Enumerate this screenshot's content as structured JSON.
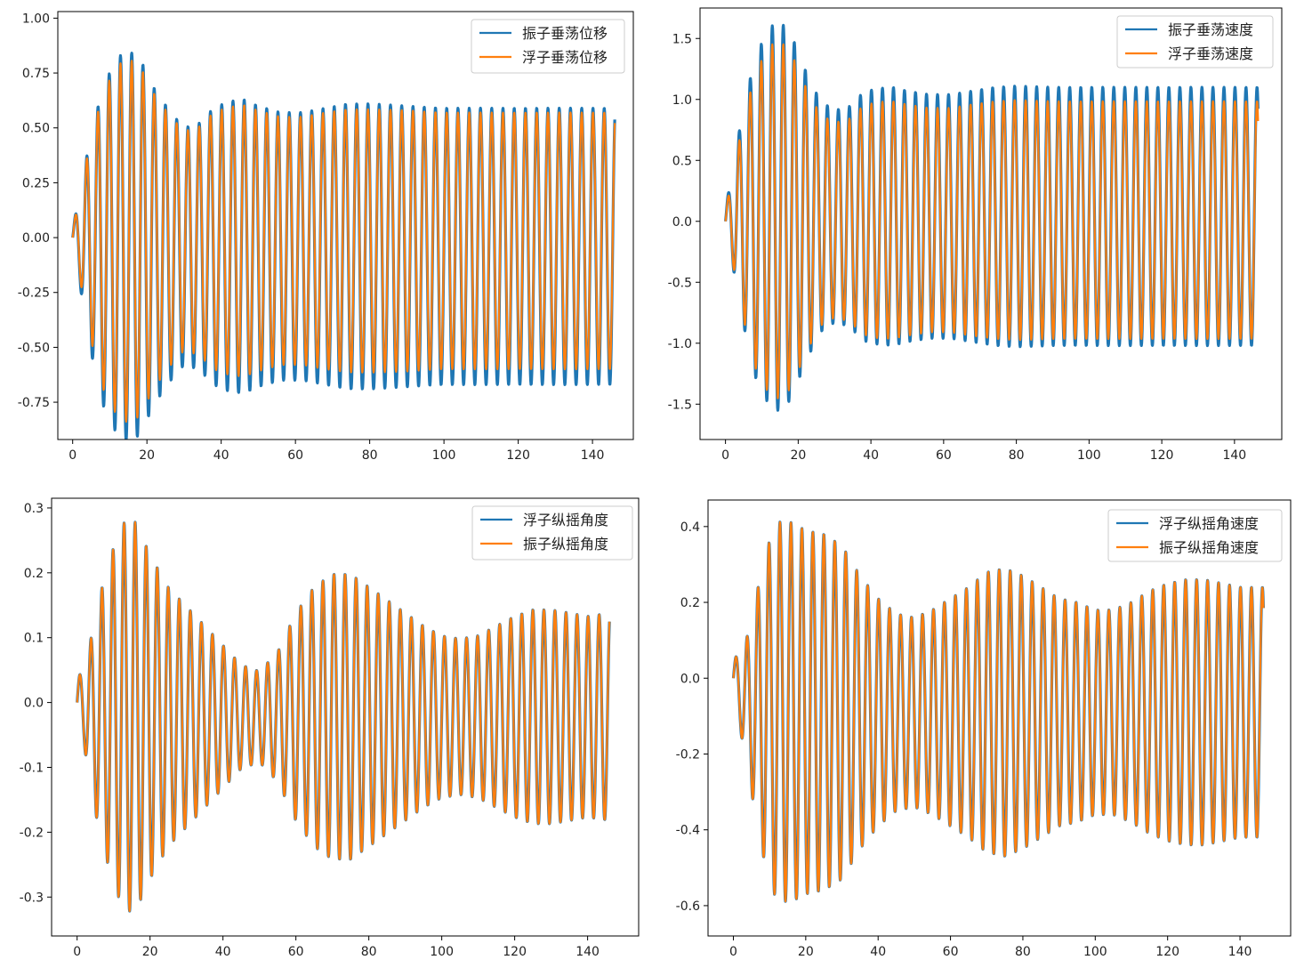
{
  "chart_data": [
    {
      "type": "line",
      "panel": "top-left",
      "title": "",
      "xlabel": "",
      "ylabel": "",
      "xlim": [
        -4,
        151
      ],
      "ylim": [
        -0.92,
        1.03
      ],
      "xticks": [
        0,
        20,
        40,
        60,
        80,
        100,
        120,
        140
      ],
      "yticks": [
        -0.75,
        -0.5,
        -0.25,
        0.0,
        0.25,
        0.5,
        0.75,
        1.0
      ],
      "ytick_labels": [
        "-0.75",
        "-0.50",
        "-0.25",
        "0.00",
        "0.25",
        "0.50",
        "0.75",
        "1.00"
      ],
      "legend_position": "top-right",
      "signal": {
        "t_end": 146,
        "period": 3.03,
        "start_sign": 1,
        "lp": 3.3
      },
      "series": [
        {
          "name": "振子垂荡位移",
          "color": "#1f77b4",
          "env_x": [
            0,
            2,
            4,
            8,
            12,
            15,
            18,
            22,
            26,
            30,
            34,
            38,
            42,
            46,
            50,
            56,
            62,
            68,
            74,
            80,
            90,
            100,
            110,
            120,
            130,
            146
          ],
          "env_y": [
            0.06,
            0.2,
            0.42,
            0.72,
            0.86,
            0.89,
            0.86,
            0.72,
            0.62,
            0.54,
            0.56,
            0.63,
            0.66,
            0.67,
            0.64,
            0.61,
            0.61,
            0.63,
            0.65,
            0.65,
            0.64,
            0.63,
            0.63,
            0.63,
            0.63,
            0.63
          ],
          "offset": -0.04
        },
        {
          "name": "浮子垂荡位移",
          "color": "#ff7f0e",
          "env_x": [
            0,
            2,
            4,
            8,
            12,
            15,
            18,
            22,
            26,
            30,
            34,
            38,
            42,
            46,
            50,
            56,
            62,
            68,
            74,
            80,
            90,
            100,
            110,
            120,
            130,
            146
          ],
          "env_y": [
            0.055,
            0.185,
            0.39,
            0.67,
            0.8,
            0.83,
            0.8,
            0.67,
            0.575,
            0.5,
            0.52,
            0.585,
            0.61,
            0.62,
            0.595,
            0.565,
            0.565,
            0.585,
            0.6,
            0.6,
            0.595,
            0.585,
            0.585,
            0.585,
            0.585,
            0.585
          ],
          "offset": -0.015
        }
      ]
    },
    {
      "type": "line",
      "panel": "top-right",
      "title": "",
      "xlabel": "",
      "ylabel": "",
      "xlim": [
        -7,
        153
      ],
      "ylim": [
        -1.79,
        1.75
      ],
      "xticks": [
        0,
        20,
        40,
        60,
        80,
        100,
        120,
        140
      ],
      "yticks": [
        -1.5,
        -1.0,
        -0.5,
        0.0,
        0.5,
        1.0,
        1.5
      ],
      "ytick_labels": [
        "-1.5",
        "-1.0",
        "-0.5",
        "0.0",
        "0.5",
        "1.0",
        "1.5"
      ],
      "legend_position": "top-right",
      "signal": {
        "t_end": 146.5,
        "period": 3.03,
        "start_sign": 1,
        "lp": 3.3
      },
      "series": [
        {
          "name": "振子垂荡速度",
          "color": "#1f77b4",
          "env_x": [
            0,
            2,
            4,
            8,
            12,
            15,
            18,
            22,
            26,
            30,
            34,
            38,
            42,
            46,
            50,
            56,
            62,
            68,
            74,
            80,
            90,
            100,
            110,
            120,
            130,
            146
          ],
          "env_y": [
            0.12,
            0.38,
            0.75,
            1.3,
            1.55,
            1.6,
            1.5,
            1.2,
            0.95,
            0.87,
            0.9,
            1.02,
            1.05,
            1.06,
            1.03,
            1.0,
            1.0,
            1.03,
            1.06,
            1.07,
            1.06,
            1.06,
            1.06,
            1.06,
            1.06,
            1.06
          ],
          "offset": 0.04
        },
        {
          "name": "浮子垂荡速度",
          "color": "#ff7f0e",
          "env_x": [
            0,
            2,
            4,
            8,
            12,
            15,
            18,
            22,
            26,
            30,
            34,
            38,
            42,
            46,
            50,
            56,
            62,
            68,
            74,
            80,
            90,
            100,
            110,
            120,
            130,
            146
          ],
          "env_y": [
            0.11,
            0.35,
            0.69,
            1.2,
            1.43,
            1.47,
            1.38,
            1.1,
            0.87,
            0.8,
            0.83,
            0.94,
            0.97,
            0.975,
            0.95,
            0.92,
            0.92,
            0.95,
            0.975,
            0.985,
            0.975,
            0.975,
            0.975,
            0.975,
            0.975,
            0.975
          ],
          "offset": 0.01
        }
      ]
    },
    {
      "type": "line",
      "panel": "bottom-left",
      "title": "",
      "xlabel": "",
      "ylabel": "",
      "xlim": [
        -7,
        154
      ],
      "ylim": [
        -0.36,
        0.315
      ],
      "xticks": [
        0,
        20,
        40,
        60,
        80,
        100,
        120,
        140
      ],
      "yticks": [
        -0.3,
        -0.2,
        -0.1,
        0.0,
        0.1,
        0.2,
        0.3
      ],
      "ytick_labels": [
        "-0.3",
        "-0.2",
        "-0.1",
        "0.0",
        "0.1",
        "0.2",
        "0.3"
      ],
      "legend_position": "top-right",
      "signal": {
        "t_end": 146,
        "period": 3.03,
        "start_sign": 1,
        "lp": 3.3
      },
      "series": [
        {
          "name": "浮子纵摇角度",
          "color": "#1f77b4",
          "env_x": [
            0,
            2,
            4,
            6,
            10,
            13,
            16,
            20,
            25,
            30,
            35,
            40,
            45,
            50,
            55,
            60,
            65,
            70,
            75,
            80,
            85,
            90,
            95,
            100,
            105,
            110,
            115,
            120,
            125,
            130,
            135,
            140,
            146
          ],
          "env_y": [
            0.04,
            0.06,
            0.12,
            0.18,
            0.26,
            0.3,
            0.3,
            0.25,
            0.2,
            0.17,
            0.14,
            0.11,
            0.08,
            0.07,
            0.1,
            0.16,
            0.2,
            0.22,
            0.22,
            0.2,
            0.18,
            0.16,
            0.14,
            0.125,
            0.12,
            0.125,
            0.14,
            0.155,
            0.165,
            0.165,
            0.16,
            0.155,
            0.16
          ],
          "offset": -0.022
        },
        {
          "name": "振子纵摇角度",
          "color": "#ff7f0e",
          "env_x": [
            0,
            2,
            4,
            6,
            10,
            13,
            16,
            20,
            25,
            30,
            35,
            40,
            45,
            50,
            55,
            60,
            65,
            70,
            75,
            80,
            85,
            90,
            95,
            100,
            105,
            110,
            115,
            120,
            125,
            130,
            135,
            140,
            146
          ],
          "env_y": [
            0.04,
            0.06,
            0.12,
            0.18,
            0.26,
            0.3,
            0.3,
            0.25,
            0.2,
            0.17,
            0.14,
            0.11,
            0.08,
            0.07,
            0.1,
            0.16,
            0.2,
            0.22,
            0.22,
            0.2,
            0.18,
            0.16,
            0.14,
            0.125,
            0.12,
            0.125,
            0.14,
            0.155,
            0.165,
            0.165,
            0.16,
            0.155,
            0.16
          ],
          "offset": -0.022
        }
      ]
    },
    {
      "type": "line",
      "panel": "bottom-right",
      "title": "",
      "xlabel": "",
      "ylabel": "",
      "xlim": [
        -7,
        154
      ],
      "ylim": [
        -0.68,
        0.47
      ],
      "xticks": [
        0,
        20,
        40,
        60,
        80,
        100,
        120,
        140
      ],
      "yticks": [
        -0.6,
        -0.4,
        -0.2,
        0.0,
        0.2,
        0.4
      ],
      "ytick_labels": [
        "-0.6",
        "-0.4",
        "-0.2",
        "0.0",
        "0.2",
        "0.4"
      ],
      "legend_position": "top-right",
      "signal": {
        "t_end": 146.5,
        "period": 3.03,
        "start_sign": 1,
        "lp": 3.3
      },
      "series": [
        {
          "name": "浮子纵摇角速度",
          "color": "#1f77b4",
          "env_x": [
            0,
            2,
            4,
            6,
            9,
            12,
            16,
            20,
            25,
            30,
            35,
            40,
            45,
            50,
            55,
            60,
            65,
            70,
            75,
            80,
            85,
            90,
            95,
            100,
            105,
            110,
            115,
            120,
            125,
            130,
            135,
            140,
            146
          ],
          "env_y": [
            0.06,
            0.1,
            0.18,
            0.28,
            0.42,
            0.5,
            0.5,
            0.48,
            0.47,
            0.44,
            0.36,
            0.3,
            0.26,
            0.25,
            0.27,
            0.3,
            0.33,
            0.37,
            0.38,
            0.36,
            0.33,
            0.3,
            0.29,
            0.27,
            0.27,
            0.29,
            0.32,
            0.34,
            0.35,
            0.35,
            0.34,
            0.33,
            0.33
          ],
          "offset": -0.09
        },
        {
          "name": "振子纵摇角速度",
          "color": "#ff7f0e",
          "env_x": [
            0,
            2,
            4,
            6,
            9,
            12,
            16,
            20,
            25,
            30,
            35,
            40,
            45,
            50,
            55,
            60,
            65,
            70,
            75,
            80,
            85,
            90,
            95,
            100,
            105,
            110,
            115,
            120,
            125,
            130,
            135,
            140,
            146
          ],
          "env_y": [
            0.06,
            0.1,
            0.18,
            0.28,
            0.42,
            0.5,
            0.5,
            0.48,
            0.47,
            0.44,
            0.36,
            0.3,
            0.26,
            0.25,
            0.27,
            0.3,
            0.33,
            0.37,
            0.38,
            0.36,
            0.33,
            0.3,
            0.29,
            0.27,
            0.27,
            0.29,
            0.32,
            0.34,
            0.35,
            0.35,
            0.34,
            0.33,
            0.33
          ],
          "offset": -0.09
        }
      ]
    }
  ]
}
